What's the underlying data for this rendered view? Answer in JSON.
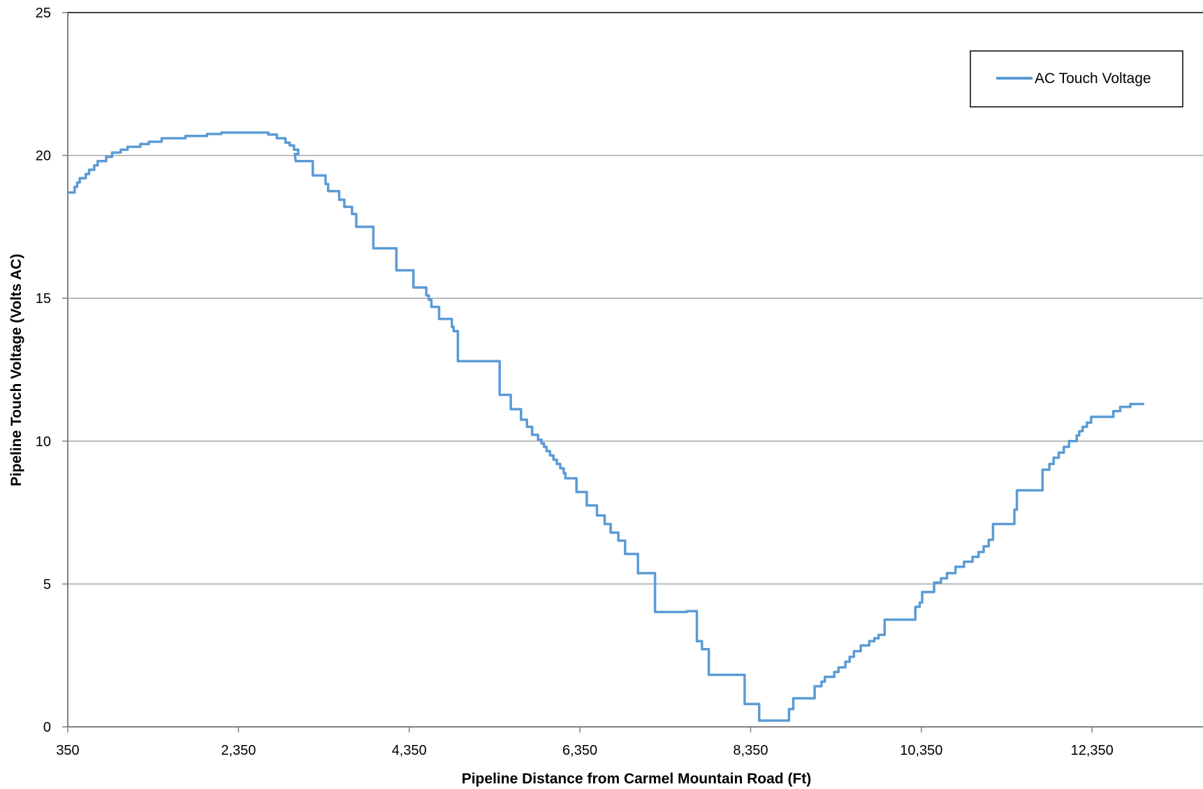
{
  "chart_data": {
    "type": "line",
    "title": "",
    "xlabel": "Pipeline Distance from Carmel Mountain Road (Ft)",
    "ylabel": "Pipeline Touch Voltage (Volts AC)",
    "xlim": [
      350,
      13650
    ],
    "ylim": [
      0,
      25
    ],
    "xticks": [
      350,
      2350,
      4350,
      6350,
      8350,
      10350,
      12350
    ],
    "xtick_labels": [
      "350",
      "2,350",
      "4,350",
      "6,350",
      "8,350",
      "10,350",
      "12,350"
    ],
    "yticks": [
      0,
      5,
      10,
      15,
      20,
      25
    ],
    "ytick_labels": [
      "0",
      "5",
      "10",
      "15",
      "20",
      "25"
    ],
    "grid": "horizontal",
    "legend_position": "top-right",
    "series": [
      {
        "name": "AC Touch Voltage",
        "color": "#5b9bd5",
        "points": [
          [
            350,
            18.7
          ],
          [
            430,
            18.7
          ],
          [
            430,
            18.9
          ],
          [
            460,
            18.9
          ],
          [
            460,
            19.05
          ],
          [
            490,
            19.05
          ],
          [
            490,
            19.2
          ],
          [
            560,
            19.2
          ],
          [
            560,
            19.35
          ],
          [
            600,
            19.35
          ],
          [
            600,
            19.5
          ],
          [
            660,
            19.5
          ],
          [
            660,
            19.65
          ],
          [
            700,
            19.65
          ],
          [
            700,
            19.8
          ],
          [
            800,
            19.8
          ],
          [
            800,
            19.95
          ],
          [
            870,
            19.95
          ],
          [
            870,
            20.1
          ],
          [
            970,
            20.1
          ],
          [
            970,
            20.2
          ],
          [
            1050,
            20.2
          ],
          [
            1050,
            20.3
          ],
          [
            1200,
            20.3
          ],
          [
            1200,
            20.4
          ],
          [
            1300,
            20.4
          ],
          [
            1300,
            20.48
          ],
          [
            1450,
            20.48
          ],
          [
            1450,
            20.6
          ],
          [
            1730,
            20.6
          ],
          [
            1730,
            20.68
          ],
          [
            1980,
            20.68
          ],
          [
            1980,
            20.75
          ],
          [
            2150,
            20.75
          ],
          [
            2150,
            20.8
          ],
          [
            2700,
            20.8
          ],
          [
            2700,
            20.73
          ],
          [
            2800,
            20.73
          ],
          [
            2800,
            20.6
          ],
          [
            2900,
            20.6
          ],
          [
            2900,
            20.45
          ],
          [
            2950,
            20.45
          ],
          [
            2950,
            20.35
          ],
          [
            3000,
            20.35
          ],
          [
            3000,
            20.2
          ],
          [
            3050,
            20.2
          ],
          [
            3050,
            20.05
          ],
          [
            3010,
            20.05
          ],
          [
            3020,
            19.8
          ],
          [
            3220,
            19.8
          ],
          [
            3220,
            19.3
          ],
          [
            3370,
            19.3
          ],
          [
            3370,
            19.0
          ],
          [
            3400,
            19.0
          ],
          [
            3400,
            18.75
          ],
          [
            3530,
            18.75
          ],
          [
            3530,
            18.45
          ],
          [
            3590,
            18.45
          ],
          [
            3590,
            18.2
          ],
          [
            3680,
            18.2
          ],
          [
            3680,
            17.95
          ],
          [
            3730,
            17.95
          ],
          [
            3730,
            17.5
          ],
          [
            3930,
            17.5
          ],
          [
            3930,
            16.75
          ],
          [
            4200,
            16.75
          ],
          [
            4200,
            15.98
          ],
          [
            4400,
            15.98
          ],
          [
            4400,
            15.38
          ],
          [
            4550,
            15.38
          ],
          [
            4550,
            15.1
          ],
          [
            4580,
            15.1
          ],
          [
            4580,
            14.95
          ],
          [
            4610,
            14.95
          ],
          [
            4610,
            14.7
          ],
          [
            4700,
            14.7
          ],
          [
            4700,
            14.28
          ],
          [
            4850,
            14.28
          ],
          [
            4850,
            14.0
          ],
          [
            4870,
            14.0
          ],
          [
            4870,
            13.85
          ],
          [
            4920,
            13.85
          ],
          [
            4920,
            12.8
          ],
          [
            5410,
            12.8
          ],
          [
            5410,
            11.62
          ],
          [
            5540,
            11.62
          ],
          [
            5540,
            11.12
          ],
          [
            5660,
            11.12
          ],
          [
            5660,
            10.75
          ],
          [
            5730,
            10.75
          ],
          [
            5730,
            10.5
          ],
          [
            5790,
            10.5
          ],
          [
            5790,
            10.22
          ],
          [
            5860,
            10.22
          ],
          [
            5860,
            10.05
          ],
          [
            5900,
            10.05
          ],
          [
            5900,
            9.92
          ],
          [
            5930,
            9.92
          ],
          [
            5930,
            9.8
          ],
          [
            5960,
            9.8
          ],
          [
            5960,
            9.65
          ],
          [
            6000,
            9.65
          ],
          [
            6000,
            9.5
          ],
          [
            6040,
            9.5
          ],
          [
            6040,
            9.35
          ],
          [
            6080,
            9.35
          ],
          [
            6080,
            9.2
          ],
          [
            6120,
            9.2
          ],
          [
            6120,
            9.05
          ],
          [
            6160,
            9.05
          ],
          [
            6160,
            8.88
          ],
          [
            6180,
            8.88
          ],
          [
            6180,
            8.7
          ],
          [
            6310,
            8.7
          ],
          [
            6310,
            8.22
          ],
          [
            6430,
            8.22
          ],
          [
            6430,
            7.75
          ],
          [
            6550,
            7.75
          ],
          [
            6550,
            7.4
          ],
          [
            6640,
            7.4
          ],
          [
            6640,
            7.1
          ],
          [
            6710,
            7.1
          ],
          [
            6710,
            6.8
          ],
          [
            6800,
            6.8
          ],
          [
            6800,
            6.52
          ],
          [
            6880,
            6.52
          ],
          [
            6880,
            6.05
          ],
          [
            7030,
            6.05
          ],
          [
            7030,
            5.38
          ],
          [
            7230,
            5.38
          ],
          [
            7230,
            4.02
          ],
          [
            7600,
            4.02
          ],
          [
            7600,
            4.05
          ],
          [
            7720,
            4.05
          ],
          [
            7720,
            3.0
          ],
          [
            7780,
            3.0
          ],
          [
            7780,
            2.72
          ],
          [
            7860,
            2.72
          ],
          [
            7860,
            1.82
          ],
          [
            8280,
            1.82
          ],
          [
            8280,
            0.8
          ],
          [
            8450,
            0.8
          ],
          [
            8450,
            0.22
          ],
          [
            8800,
            0.22
          ],
          [
            8800,
            0.62
          ],
          [
            8850,
            0.62
          ],
          [
            8850,
            1.0
          ],
          [
            9100,
            1.0
          ],
          [
            9100,
            1.42
          ],
          [
            9180,
            1.42
          ],
          [
            9180,
            1.58
          ],
          [
            9220,
            1.58
          ],
          [
            9220,
            1.75
          ],
          [
            9330,
            1.75
          ],
          [
            9330,
            1.92
          ],
          [
            9380,
            1.92
          ],
          [
            9380,
            2.08
          ],
          [
            9460,
            2.08
          ],
          [
            9460,
            2.28
          ],
          [
            9510,
            2.28
          ],
          [
            9510,
            2.45
          ],
          [
            9560,
            2.45
          ],
          [
            9560,
            2.65
          ],
          [
            9640,
            2.65
          ],
          [
            9640,
            2.85
          ],
          [
            9740,
            2.85
          ],
          [
            9740,
            3.0
          ],
          [
            9800,
            3.0
          ],
          [
            9800,
            3.1
          ],
          [
            9850,
            3.1
          ],
          [
            9850,
            3.22
          ],
          [
            9920,
            3.22
          ],
          [
            9920,
            3.75
          ],
          [
            10280,
            3.75
          ],
          [
            10280,
            4.2
          ],
          [
            10330,
            4.2
          ],
          [
            10330,
            4.35
          ],
          [
            10360,
            4.35
          ],
          [
            10360,
            4.72
          ],
          [
            10500,
            4.72
          ],
          [
            10500,
            5.05
          ],
          [
            10580,
            5.05
          ],
          [
            10580,
            5.2
          ],
          [
            10650,
            5.2
          ],
          [
            10650,
            5.38
          ],
          [
            10750,
            5.38
          ],
          [
            10750,
            5.6
          ],
          [
            10850,
            5.6
          ],
          [
            10850,
            5.78
          ],
          [
            10950,
            5.78
          ],
          [
            10950,
            5.95
          ],
          [
            11020,
            5.95
          ],
          [
            11020,
            6.12
          ],
          [
            11080,
            6.12
          ],
          [
            11080,
            6.32
          ],
          [
            11140,
            6.32
          ],
          [
            11140,
            6.55
          ],
          [
            11190,
            6.55
          ],
          [
            11190,
            7.1
          ],
          [
            11440,
            7.1
          ],
          [
            11440,
            7.6
          ],
          [
            11470,
            7.6
          ],
          [
            11470,
            8.28
          ],
          [
            11770,
            8.28
          ],
          [
            11770,
            9.0
          ],
          [
            11850,
            9.0
          ],
          [
            11850,
            9.2
          ],
          [
            11900,
            9.2
          ],
          [
            11900,
            9.42
          ],
          [
            11960,
            9.42
          ],
          [
            11960,
            9.6
          ],
          [
            12020,
            9.6
          ],
          [
            12020,
            9.8
          ],
          [
            12080,
            9.8
          ],
          [
            12080,
            10.0
          ],
          [
            12170,
            10.0
          ],
          [
            12170,
            10.2
          ],
          [
            12200,
            10.2
          ],
          [
            12200,
            10.35
          ],
          [
            12240,
            10.35
          ],
          [
            12240,
            10.5
          ],
          [
            12290,
            10.5
          ],
          [
            12290,
            10.65
          ],
          [
            12340,
            10.65
          ],
          [
            12340,
            10.85
          ],
          [
            12600,
            10.85
          ],
          [
            12600,
            11.05
          ],
          [
            12680,
            11.05
          ],
          [
            12680,
            11.2
          ],
          [
            12800,
            11.2
          ],
          [
            12800,
            11.3
          ],
          [
            12960,
            11.3
          ]
        ]
      }
    ]
  }
}
